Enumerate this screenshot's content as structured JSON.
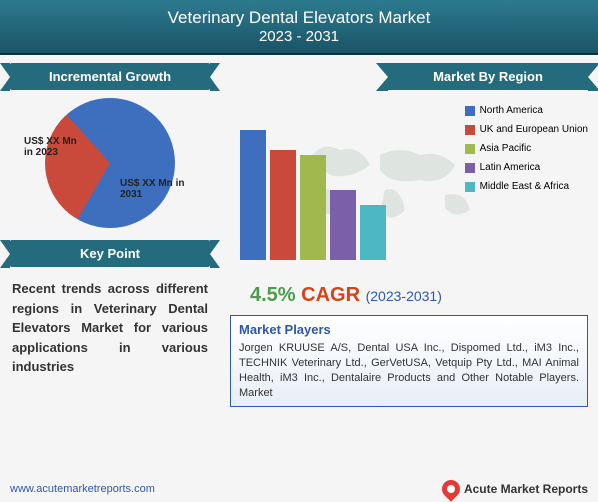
{
  "header": {
    "title": "Veterinary Dental Elevators Market",
    "years": "2023 - 2031"
  },
  "left": {
    "growth_label": "Incremental Growth",
    "pie": {
      "slice2023": {
        "label": "US$ XX Mn in 2023",
        "color": "#c94a3b",
        "pct": 30
      },
      "slice2031": {
        "label": "US$ XX Mn in 2031",
        "color": "#3e6fbf",
        "pct": 70
      }
    },
    "keypoint_label": "Key Point",
    "keypoint_text": "Recent trends across different regions in Veterinary Dental Elevators Market for various applications in various industries"
  },
  "right": {
    "region_label": "Market By Region",
    "bars": {
      "items": [
        {
          "name": "North America",
          "color": "#3e6fbf",
          "value": 130
        },
        {
          "name": "UK and European Union",
          "color": "#c94a3b",
          "value": 110
        },
        {
          "name": "Asia Pacific",
          "color": "#9fb94e",
          "value": 105
        },
        {
          "name": "Latin America",
          "color": "#7b5fa8",
          "value": 70
        },
        {
          "name": "Middle East & Africa",
          "color": "#4db8c4",
          "value": 55
        }
      ]
    },
    "cagr": {
      "pct": "4.5%",
      "label": "CAGR",
      "years": "(2023-2031)"
    },
    "players": {
      "title": "Market Players",
      "text": "Jorgen KRUUSE A/S, Dental USA Inc., Dispomed Ltd., iM3 Inc., TECHNIK Veterinary Ltd., GerVetUSA, Vetquip Pty Ltd., MAI Animal Health, iM3 Inc., Dentalaire Products and Other Notable Players. Market"
    }
  },
  "footer": {
    "url": "www.acutemarketreports.com",
    "logo": "Acute Market Reports"
  }
}
